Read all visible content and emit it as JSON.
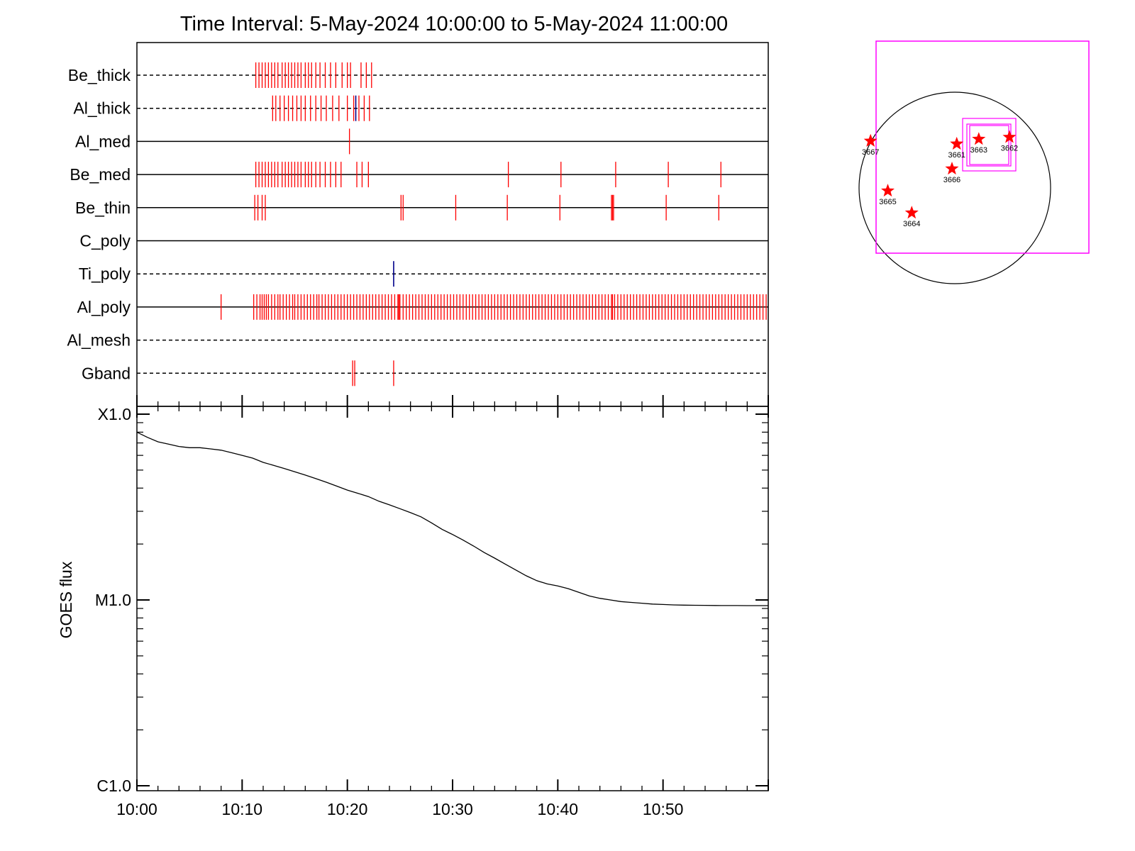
{
  "title": "Time Interval:  5-May-2024 10:00:00 to  5-May-2024 11:00:00",
  "colors": {
    "exposure": "#ff0000",
    "special": "#00008b",
    "box": "#ff00ff",
    "axis": "#000000"
  },
  "chart_data": [
    {
      "type": "scatter",
      "panel": "filter-timeline",
      "x_unit": "minutes after 10:00",
      "xlim": [
        0,
        60
      ],
      "rows": [
        {
          "label": "Be_thick",
          "line": "dashed",
          "ticks": [
            11.3,
            11.6,
            11.9,
            12.2,
            12.5,
            12.8,
            13.1,
            13.4,
            13.8,
            14.1,
            14.4,
            14.7,
            15.0,
            15.3,
            15.6,
            16.0,
            16.3,
            16.6,
            17.0,
            17.4,
            17.9,
            18.4,
            18.9,
            19.5,
            20.0,
            20.3,
            21.3,
            21.8,
            22.3
          ],
          "special": []
        },
        {
          "label": "Al_thick",
          "line": "dashed",
          "ticks": [
            12.9,
            13.2,
            13.6,
            14.0,
            14.4,
            14.8,
            15.2,
            15.6,
            16.0,
            16.5,
            17.0,
            17.5,
            18.0,
            18.6,
            19.2,
            20.0,
            20.6,
            21.1,
            21.6,
            22.1
          ],
          "special": [
            20.8
          ]
        },
        {
          "label": "Al_med",
          "line": "solid",
          "ticks": [
            20.2
          ],
          "special": []
        },
        {
          "label": "Be_med",
          "line": "solid",
          "ticks": [
            11.3,
            11.6,
            11.9,
            12.2,
            12.5,
            12.8,
            13.1,
            13.4,
            13.8,
            14.1,
            14.4,
            14.7,
            15.0,
            15.3,
            15.6,
            16.0,
            16.3,
            16.6,
            17.0,
            17.4,
            17.9,
            18.4,
            18.9,
            19.4,
            20.9,
            21.4,
            22.0,
            35.3,
            40.3,
            45.5,
            50.5,
            55.5
          ],
          "special": []
        },
        {
          "label": "Be_thin",
          "line": "solid",
          "ticks": [
            11.2,
            11.5,
            11.9,
            12.2,
            25.1,
            25.3,
            30.3,
            35.2,
            40.2,
            45.1,
            45.2,
            45.3,
            50.3,
            55.3
          ],
          "special": []
        },
        {
          "label": "C_poly",
          "line": "solid",
          "ticks": [],
          "special": []
        },
        {
          "label": "Ti_poly",
          "line": "dashed",
          "ticks": [],
          "special": [
            24.4
          ]
        },
        {
          "label": "Al_poly",
          "line": "solid",
          "ticks": [
            8.0,
            11.1,
            11.4,
            11.7,
            11.9,
            12.1,
            12.3,
            12.5,
            12.8,
            13.1,
            13.4,
            13.6,
            13.9,
            14.2,
            14.5,
            14.8,
            15.0,
            15.3,
            15.6,
            15.9,
            16.2,
            16.5,
            16.8,
            17.1,
            17.3,
            17.6,
            17.9,
            18.2,
            18.5,
            18.8,
            19.1,
            19.4,
            19.7,
            20.0,
            20.3,
            20.6,
            20.9,
            21.2,
            21.5,
            21.8,
            22.1,
            22.4,
            22.7,
            23.0,
            23.3,
            23.6,
            23.9,
            24.2,
            24.5,
            24.8,
            24.9,
            25.0,
            25.3,
            25.6,
            25.9,
            26.2,
            26.5,
            26.8,
            27.1,
            27.4,
            27.7,
            28.0,
            28.3,
            28.6,
            28.9,
            29.2,
            29.5,
            29.8,
            30.1,
            30.4,
            30.7,
            31.0,
            31.3,
            31.6,
            31.9,
            32.2,
            32.5,
            32.8,
            33.1,
            33.4,
            33.7,
            34.0,
            34.3,
            34.6,
            34.9,
            35.2,
            35.5,
            35.8,
            36.1,
            36.4,
            36.7,
            37.0,
            37.3,
            37.6,
            37.9,
            38.2,
            38.5,
            38.8,
            39.1,
            39.4,
            39.7,
            40.0,
            40.3,
            40.6,
            40.9,
            41.2,
            41.5,
            41.8,
            42.1,
            42.4,
            42.7,
            43.0,
            43.3,
            43.6,
            43.9,
            44.2,
            44.5,
            44.8,
            45.1,
            45.2,
            45.4,
            45.7,
            46.0,
            46.3,
            46.6,
            46.9,
            47.2,
            47.5,
            47.8,
            48.1,
            48.4,
            48.7,
            49.0,
            49.3,
            49.6,
            49.9,
            50.2,
            50.5,
            50.8,
            51.1,
            51.4,
            51.7,
            52.0,
            52.3,
            52.6,
            52.9,
            53.2,
            53.5,
            53.8,
            54.1,
            54.4,
            54.7,
            55.0,
            55.3,
            55.6,
            55.9,
            56.2,
            56.5,
            56.8,
            57.1,
            57.4,
            57.7,
            58.0,
            58.3,
            58.6,
            58.9,
            59.2,
            59.5,
            59.8
          ],
          "special": []
        },
        {
          "label": "Al_mesh",
          "line": "dashed",
          "ticks": [],
          "special": []
        },
        {
          "label": "Gband",
          "line": "dashed",
          "ticks": [
            20.5,
            20.7,
            24.4
          ],
          "special": []
        }
      ]
    },
    {
      "type": "line",
      "panel": "goes-flux",
      "ylabel": "GOES flux",
      "yscale": "log",
      "ylim_label": [
        "C1.0",
        "X1.0"
      ],
      "ylim": [
        1e-06,
        0.0001
      ],
      "y_ticklabels": [
        "X1.0",
        "M1.0",
        "C1.0"
      ],
      "xlim": [
        0,
        60
      ],
      "x_ticklabels": [
        "10:00",
        "10:10",
        "10:20",
        "10:30",
        "10:40",
        "10:50"
      ],
      "series": [
        {
          "x": [
            0,
            1,
            2,
            3,
            4,
            5,
            6,
            7,
            8,
            9,
            10,
            11,
            12,
            13,
            14,
            15,
            16,
            17,
            18,
            19,
            20,
            21,
            22,
            23,
            24,
            25,
            26,
            27,
            28,
            29,
            30,
            31,
            32,
            33,
            34,
            35,
            36,
            37,
            38,
            39,
            40,
            41,
            42,
            43,
            44,
            45,
            46,
            47,
            48,
            49,
            50,
            51,
            52,
            53,
            54,
            55,
            56,
            57,
            58,
            59,
            60
          ],
          "y": [
            8e-05,
            7.5e-05,
            7.1e-05,
            6.9e-05,
            6.7e-05,
            6.6e-05,
            6.6e-05,
            6.5e-05,
            6.4e-05,
            6.2e-05,
            6e-05,
            5.8e-05,
            5.5e-05,
            5.3e-05,
            5.1e-05,
            4.9e-05,
            4.7e-05,
            4.5e-05,
            4.3e-05,
            4.1e-05,
            3.9e-05,
            3.75e-05,
            3.6e-05,
            3.4e-05,
            3.25e-05,
            3.1e-05,
            2.95e-05,
            2.8e-05,
            2.6e-05,
            2.4e-05,
            2.25e-05,
            2.1e-05,
            1.95e-05,
            1.8e-05,
            1.68e-05,
            1.56e-05,
            1.45e-05,
            1.35e-05,
            1.27e-05,
            1.22e-05,
            1.19e-05,
            1.15e-05,
            1.1e-05,
            1.05e-05,
            1.02e-05,
            1e-05,
            9.8e-06,
            9.7e-06,
            9.6e-06,
            9.5e-06,
            9.45e-06,
            9.4e-06,
            9.38e-06,
            9.36e-06,
            9.35e-06,
            9.34e-06,
            9.33e-06,
            9.33e-06,
            9.32e-06,
            9.32e-06,
            9.32e-06
          ]
        }
      ]
    },
    {
      "type": "scatter",
      "panel": "solar-disk",
      "points": [
        {
          "label": "3667",
          "x": -0.88,
          "y": 0.49
        },
        {
          "label": "3661",
          "x": 0.02,
          "y": 0.46
        },
        {
          "label": "3663",
          "x": 0.25,
          "y": 0.51
        },
        {
          "label": "3662",
          "x": 0.57,
          "y": 0.53
        },
        {
          "label": "3666",
          "x": -0.03,
          "y": 0.2
        },
        {
          "label": "3665",
          "x": -0.7,
          "y": -0.03
        },
        {
          "label": "3664",
          "x": -0.45,
          "y": -0.26
        }
      ]
    }
  ]
}
